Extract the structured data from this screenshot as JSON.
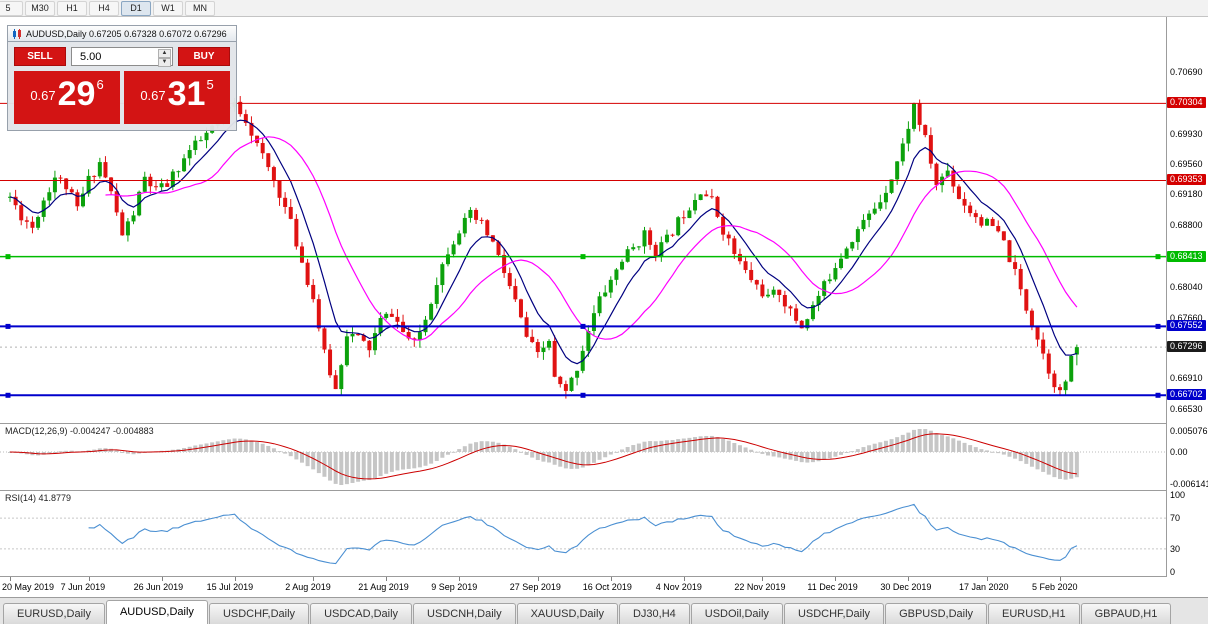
{
  "toolbar": {
    "timeframes": [
      "5",
      "M30",
      "H1",
      "H4",
      "D1",
      "W1",
      "MN"
    ],
    "active": "D1"
  },
  "chart_header": {
    "symbol": "AUDUSD,Daily",
    "ohlc": "0.67205 0.67328 0.67072 0.67296"
  },
  "one_click": {
    "sell_label": "SELL",
    "buy_label": "BUY",
    "volume": "5.00",
    "sell_price": {
      "prefix": "0.67",
      "big": "29",
      "sup": "6"
    },
    "buy_price": {
      "prefix": "0.67",
      "big": "31",
      "sup": "5"
    }
  },
  "macd": {
    "label": "MACD(12,26,9) -0.004247 -0.004883",
    "value_main": "-0.004247",
    "value_signal": "-0.004883",
    "axis": [
      {
        "text": "0.005076",
        "at": "top"
      },
      {
        "text": "0.00",
        "at": "zero"
      },
      {
        "text": "-0.006141",
        "at": "bottom"
      }
    ]
  },
  "rsi": {
    "label": "RSI(14) 41.8779",
    "value": "41.8779",
    "axis": [
      {
        "text": "100",
        "value": 100
      },
      {
        "text": "70",
        "value": 70
      },
      {
        "text": "30",
        "value": 30
      },
      {
        "text": "0",
        "value": 0
      }
    ],
    "levels": [
      70,
      30
    ]
  },
  "y_axis": [
    "0.70690",
    "0.69930",
    "0.69560",
    "0.69180",
    "0.68800",
    "0.68040",
    "0.67660",
    "0.66910",
    "0.66530"
  ],
  "levels": [
    {
      "price": 0.70304,
      "label": "0.70304",
      "color": "#d40000",
      "width": 1,
      "handles": false
    },
    {
      "price": 0.69353,
      "label": "0.69353",
      "color": "#d40000",
      "width": 1,
      "handles": false
    },
    {
      "price": 0.68413,
      "label": "0.68413",
      "color": "#00bb00",
      "width": 1.5,
      "handles": true
    },
    {
      "price": 0.67552,
      "label": "0.67552",
      "color": "#0000cc",
      "width": 2,
      "handles": true
    },
    {
      "price": 0.66702,
      "label": "0.66702",
      "color": "#0000cc",
      "width": 2,
      "handles": true
    }
  ],
  "current_price": {
    "price": 0.67296,
    "label": "0.67296",
    "bg": "#1b1b1b"
  },
  "x_axis": [
    {
      "label": "20 May 2019",
      "i": 0
    },
    {
      "label": "7 Jun 2019",
      "i": 14
    },
    {
      "label": "26 Jun 2019",
      "i": 27
    },
    {
      "label": "15 Jul 2019",
      "i": 40
    },
    {
      "label": "2 Aug 2019",
      "i": 54
    },
    {
      "label": "21 Aug 2019",
      "i": 67
    },
    {
      "label": "9 Sep 2019",
      "i": 80
    },
    {
      "label": "27 Sep 2019",
      "i": 94
    },
    {
      "label": "16 Oct 2019",
      "i": 107
    },
    {
      "label": "4 Nov 2019",
      "i": 120
    },
    {
      "label": "22 Nov 2019",
      "i": 134
    },
    {
      "label": "11 Dec 2019",
      "i": 147
    },
    {
      "label": "30 Dec 2019",
      "i": 160
    },
    {
      "label": "17 Jan 2020",
      "i": 174
    },
    {
      "label": "5 Feb 2020",
      "i": 187
    }
  ],
  "tabs": [
    {
      "label": "EURUSD,Daily",
      "active": false
    },
    {
      "label": "AUDUSD,Daily",
      "active": true
    },
    {
      "label": "USDCHF,Daily",
      "active": false
    },
    {
      "label": "USDCAD,Daily",
      "active": false
    },
    {
      "label": "USDCNH,Daily",
      "active": false
    },
    {
      "label": "XAUUSD,Daily",
      "active": false
    },
    {
      "label": "DJ30,H4",
      "active": false
    },
    {
      "label": "USDOil,Daily",
      "active": false
    },
    {
      "label": "USDCHF,Daily",
      "active": false
    },
    {
      "label": "GBPUSD,Daily",
      "active": false
    },
    {
      "label": "EURUSD,H1",
      "active": false
    },
    {
      "label": "GBPAUD,H1",
      "active": false
    }
  ],
  "chart_data": {
    "type": "candlestick",
    "symbol": "AUDUSD",
    "timeframe": "Daily",
    "quote": {
      "open": 0.67205,
      "high": 0.67328,
      "low": 0.67072,
      "close": 0.67296
    },
    "view": {
      "price_top": 0.7137,
      "price_bottom": 0.6636
    },
    "colors": {
      "up": "#0ca10c",
      "down": "#e01212",
      "ma_fast": "#000080",
      "ma_slow": "#ff00ff",
      "macd_hist": "#c6c6c6",
      "macd_signal": "#cc0000",
      "rsi": "#4a8fd2"
    },
    "ma": {
      "fast_period": 8,
      "slow_period": 18
    },
    "indicators": {
      "macd_params": [
        12,
        26,
        9
      ],
      "rsi_period": 14
    },
    "generation": {
      "seed": 11,
      "count": 191,
      "noise": 0.0014,
      "wick": 0.001,
      "anchors": [
        [
          0,
          0.6915
        ],
        [
          2,
          0.6892
        ],
        [
          4,
          0.6878
        ],
        [
          6,
          0.6912
        ],
        [
          8,
          0.694
        ],
        [
          10,
          0.6928
        ],
        [
          12,
          0.69
        ],
        [
          14,
          0.6936
        ],
        [
          16,
          0.6958
        ],
        [
          18,
          0.692
        ],
        [
          20,
          0.6868
        ],
        [
          22,
          0.6895
        ],
        [
          24,
          0.6938
        ],
        [
          26,
          0.6922
        ],
        [
          28,
          0.693
        ],
        [
          30,
          0.6952
        ],
        [
          32,
          0.6972
        ],
        [
          34,
          0.6984
        ],
        [
          36,
          0.7
        ],
        [
          38,
          0.7018
        ],
        [
          40,
          0.703
        ],
        [
          42,
          0.7012
        ],
        [
          44,
          0.6978
        ],
        [
          46,
          0.695
        ],
        [
          48,
          0.692
        ],
        [
          50,
          0.6882
        ],
        [
          52,
          0.6835
        ],
        [
          54,
          0.679
        ],
        [
          56,
          0.672
        ],
        [
          58,
          0.6677
        ],
        [
          60,
          0.6748
        ],
        [
          62,
          0.674
        ],
        [
          64,
          0.6728
        ],
        [
          66,
          0.6762
        ],
        [
          68,
          0.6772
        ],
        [
          70,
          0.6748
        ],
        [
          72,
          0.6732
        ],
        [
          74,
          0.6765
        ],
        [
          76,
          0.6812
        ],
        [
          78,
          0.685
        ],
        [
          80,
          0.6875
        ],
        [
          82,
          0.6892
        ],
        [
          84,
          0.688
        ],
        [
          86,
          0.6858
        ],
        [
          88,
          0.6822
        ],
        [
          90,
          0.6785
        ],
        [
          92,
          0.6742
        ],
        [
          94,
          0.6718
        ],
        [
          96,
          0.6738
        ],
        [
          97,
          0.669
        ],
        [
          99,
          0.6672
        ],
        [
          101,
          0.6705
        ],
        [
          103,
          0.6752
        ],
        [
          105,
          0.6788
        ],
        [
          107,
          0.6812
        ],
        [
          109,
          0.6838
        ],
        [
          111,
          0.6852
        ],
        [
          113,
          0.6868
        ],
        [
          115,
          0.6848
        ],
        [
          117,
          0.6862
        ],
        [
          119,
          0.6885
        ],
        [
          121,
          0.6905
        ],
        [
          123,
          0.6925
        ],
        [
          125,
          0.691
        ],
        [
          127,
          0.6875
        ],
        [
          129,
          0.6845
        ],
        [
          131,
          0.6822
        ],
        [
          133,
          0.6805
        ],
        [
          135,
          0.679
        ],
        [
          137,
          0.6798
        ],
        [
          139,
          0.6772
        ],
        [
          141,
          0.6755
        ],
        [
          143,
          0.678
        ],
        [
          145,
          0.6805
        ],
        [
          147,
          0.6832
        ],
        [
          149,
          0.6855
        ],
        [
          151,
          0.6875
        ],
        [
          153,
          0.6892
        ],
        [
          155,
          0.6912
        ],
        [
          157,
          0.694
        ],
        [
          159,
          0.6978
        ],
        [
          161,
          0.7028
        ],
        [
          163,
          0.6985
        ],
        [
          165,
          0.693
        ],
        [
          167,
          0.6948
        ],
        [
          169,
          0.6915
        ],
        [
          171,
          0.6898
        ],
        [
          173,
          0.6885
        ],
        [
          175,
          0.6878
        ],
        [
          177,
          0.6858
        ],
        [
          179,
          0.682
        ],
        [
          181,
          0.6778
        ],
        [
          183,
          0.6742
        ],
        [
          185,
          0.6702
        ],
        [
          187,
          0.6672
        ],
        [
          188,
          0.6688
        ],
        [
          189,
          0.6712
        ],
        [
          190,
          0.6728
        ]
      ]
    }
  }
}
